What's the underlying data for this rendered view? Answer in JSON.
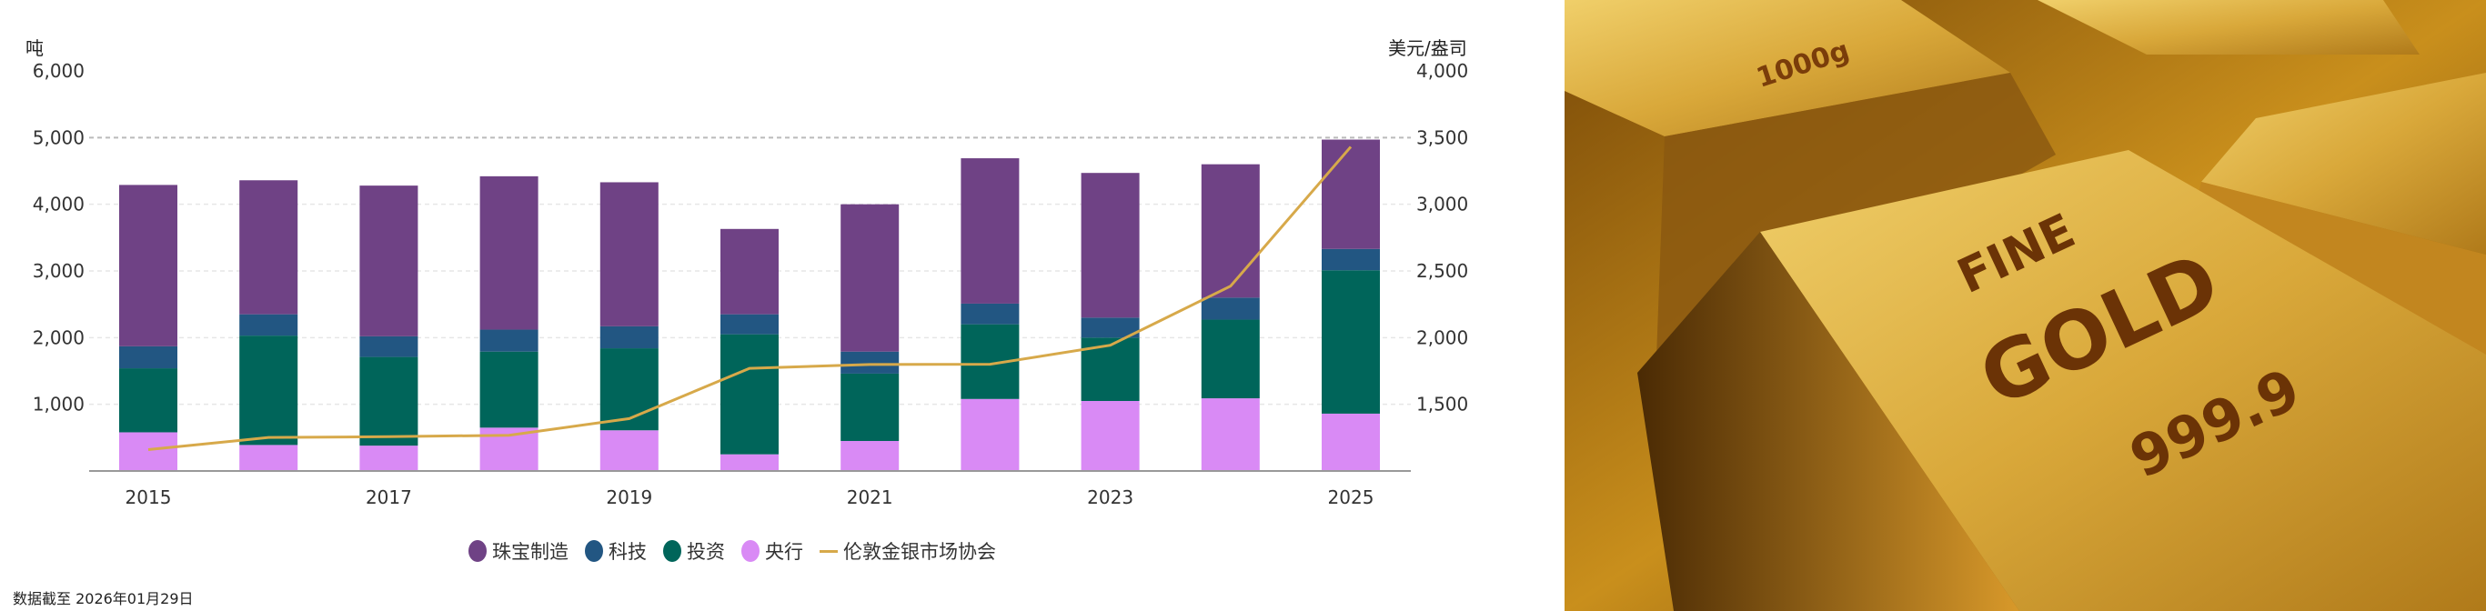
{
  "chart_data": {
    "type": "bar",
    "stacked": true,
    "categories": [
      "2015",
      "2016",
      "2017",
      "2018",
      "2019",
      "2020",
      "2021",
      "2022",
      "2023",
      "2024",
      "2025"
    ],
    "x_tick_labels": [
      "2015",
      "2017",
      "2019",
      "2021",
      "2023",
      "2025"
    ],
    "y_left": {
      "label": "吨",
      "ticks": [
        "6,000",
        "5,000",
        "4,000",
        "3,000",
        "2,000",
        "1,000"
      ],
      "ylim": [
        0,
        6000
      ]
    },
    "y_right": {
      "label": "美元/盎司",
      "ticks": [
        "4,000",
        "3,500",
        "3,000",
        "2,500",
        "2,000",
        "1,500"
      ],
      "ylim": [
        1000,
        4000
      ]
    },
    "grid": true,
    "legend_position": "bottom",
    "series": [
      {
        "name": "央行",
        "color": "#d98af5",
        "values": [
          580,
          390,
          380,
          650,
          610,
          250,
          450,
          1080,
          1050,
          1090,
          860
        ]
      },
      {
        "name": "投资",
        "color": "#00655a",
        "values": [
          960,
          1640,
          1330,
          1140,
          1230,
          1800,
          1010,
          1120,
          950,
          1180,
          2150
        ]
      },
      {
        "name": "科技",
        "color": "#225682",
        "values": [
          330,
          320,
          310,
          330,
          330,
          300,
          330,
          310,
          300,
          330,
          320
        ]
      },
      {
        "name": "珠宝制造",
        "color": "#6f4285",
        "values": [
          2420,
          2010,
          2260,
          2300,
          2160,
          1280,
          2210,
          2180,
          2170,
          2000,
          1640
        ]
      }
    ],
    "line": {
      "name": "伦敦金银市场协会",
      "color": "#d7a94a",
      "axis": "right",
      "values": [
        1160,
        1251,
        1257,
        1268,
        1393,
        1770,
        1799,
        1800,
        1943,
        2386,
        3431
      ]
    }
  },
  "legend": [
    "珠宝制造",
    "科技",
    "投资",
    "央行",
    "伦敦金银市场协会"
  ],
  "footnote": "数据截至 2026年01月29日",
  "photo": {
    "bar_text_1": "FINE",
    "bar_text_2": "GOLD",
    "bar_text_3": "999.9",
    "bar_text_4": "1000g"
  }
}
